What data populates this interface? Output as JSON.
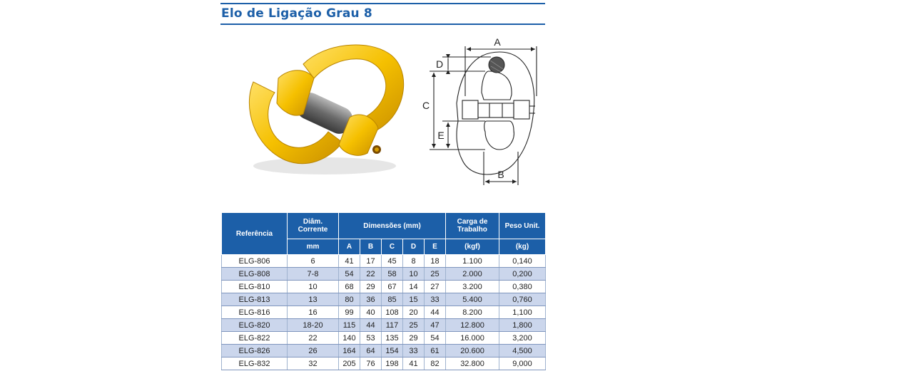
{
  "header": {
    "title": "Elo de Ligação Grau 8"
  },
  "diagram": {
    "labels": {
      "a": "A",
      "b": "B",
      "c": "C",
      "d": "D",
      "e": "E"
    }
  },
  "table": {
    "headers": {
      "referencia": "Referência",
      "diametro": "Diâm. Corrente",
      "dimensoes": "Dimensões (mm)",
      "carga": "Carga de Trabalho",
      "peso": "Peso Unit.",
      "unit_mm": "mm",
      "col_a": "A",
      "col_b": "B",
      "col_c": "C",
      "col_d": "D",
      "col_e": "E",
      "unit_kgf": "(kgf)",
      "unit_kg": "(kg)"
    },
    "rows": [
      {
        "ref": "ELG-806",
        "diam": "6",
        "a": "41",
        "b": "17",
        "c": "45",
        "d": "8",
        "e": "18",
        "carga": "1.100",
        "peso": "0,140"
      },
      {
        "ref": "ELG-808",
        "diam": "7-8",
        "a": "54",
        "b": "22",
        "c": "58",
        "d": "10",
        "e": "25",
        "carga": "2.000",
        "peso": "0,200"
      },
      {
        "ref": "ELG-810",
        "diam": "10",
        "a": "68",
        "b": "29",
        "c": "67",
        "d": "14",
        "e": "27",
        "carga": "3.200",
        "peso": "0,380"
      },
      {
        "ref": "ELG-813",
        "diam": "13",
        "a": "80",
        "b": "36",
        "c": "85",
        "d": "15",
        "e": "33",
        "carga": "5.400",
        "peso": "0,760"
      },
      {
        "ref": "ELG-816",
        "diam": "16",
        "a": "99",
        "b": "40",
        "c": "108",
        "d": "20",
        "e": "44",
        "carga": "8.200",
        "peso": "1,100"
      },
      {
        "ref": "ELG-820",
        "diam": "18-20",
        "a": "115",
        "b": "44",
        "c": "117",
        "d": "25",
        "e": "47",
        "carga": "12.800",
        "peso": "1,800"
      },
      {
        "ref": "ELG-822",
        "diam": "22",
        "a": "140",
        "b": "53",
        "c": "135",
        "d": "29",
        "e": "54",
        "carga": "16.000",
        "peso": "3,200"
      },
      {
        "ref": "ELG-826",
        "diam": "26",
        "a": "164",
        "b": "64",
        "c": "154",
        "d": "33",
        "e": "61",
        "carga": "20.600",
        "peso": "4,500"
      },
      {
        "ref": "ELG-832",
        "diam": "32",
        "a": "205",
        "b": "76",
        "c": "198",
        "d": "41",
        "e": "82",
        "carga": "32.800",
        "peso": "9,000"
      }
    ]
  }
}
